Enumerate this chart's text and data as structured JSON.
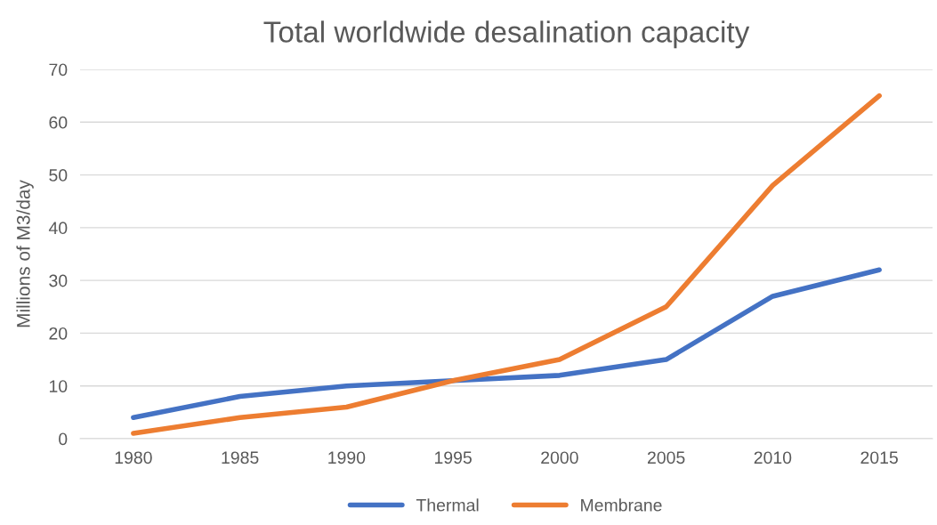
{
  "chart_data": {
    "type": "line",
    "title": "Total worldwide desalination capacity",
    "ylabel": "Millions of M3/day",
    "categories": [
      "1980",
      "1985",
      "1990",
      "1995",
      "2000",
      "2005",
      "2010",
      "2015"
    ],
    "series": [
      {
        "name": "Thermal",
        "color": "#4472c4",
        "values": [
          4,
          8,
          10,
          11,
          12,
          15,
          27,
          32
        ]
      },
      {
        "name": "Membrane",
        "color": "#ed7d31",
        "values": [
          1,
          4,
          6,
          11,
          15,
          25,
          48,
          65
        ]
      }
    ],
    "ylim": [
      0,
      70
    ],
    "yticks": [
      0,
      10,
      20,
      30,
      40,
      50,
      60,
      70
    ],
    "grid": "y",
    "legend": "bottom",
    "marker": "none",
    "line_style": "solid"
  }
}
